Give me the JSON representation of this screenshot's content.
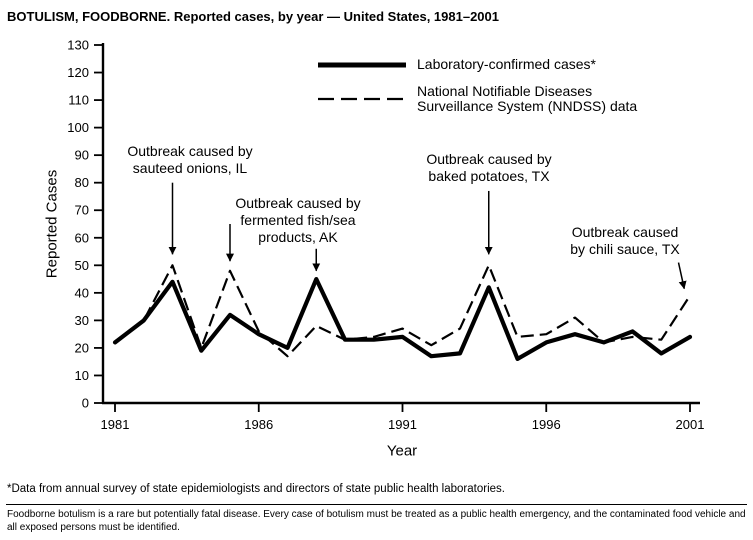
{
  "page": {
    "title": "BOTULISM, FOODBORNE. Reported cases, by year — United States, 1981–2001",
    "footnote": "*Data from annual survey of state epidemiologists and directors of state public health laboratories.",
    "bottom_note": "Foodborne botulism is a rare but potentially fatal disease. Every case of botulism must be treated as a public health emergency, and the contaminated food vehicle and all exposed persons must be identified."
  },
  "legend": {
    "lab_label": "Laboratory-confirmed cases*",
    "nndss_lines": [
      "National Notifiable Diseases",
      "Surveillance System (NNDSS) data"
    ]
  },
  "chart_data": {
    "type": "line",
    "title": "BOTULISM, FOODBORNE. Reported cases, by year — United States, 1981–2001",
    "xlabel": "Year",
    "ylabel": "Reported Cases",
    "ylim": [
      0,
      130
    ],
    "ytick_step": 10,
    "grid": false,
    "legend_position": "top-inside",
    "background": "#ffffff",
    "line_color": "#000000",
    "x": [
      1981,
      1982,
      1983,
      1984,
      1985,
      1986,
      1987,
      1988,
      1989,
      1990,
      1991,
      1992,
      1993,
      1994,
      1995,
      1996,
      1997,
      1998,
      1999,
      2000,
      2001
    ],
    "xticks": [
      1981,
      1986,
      1991,
      1996,
      2001
    ],
    "series": [
      {
        "name": "Laboratory-confirmed cases*",
        "style": "solid-thick",
        "color": "#000000",
        "values": [
          22,
          30,
          44,
          19,
          32,
          25,
          20,
          45,
          23,
          23,
          24,
          17,
          18,
          42,
          16,
          22,
          25,
          22,
          26,
          18,
          24
        ]
      },
      {
        "name": "National Notifiable Diseases Surveillance System (NNDSS) data",
        "style": "dashed",
        "color": "#000000",
        "values": [
          22,
          30,
          50,
          20,
          48,
          26,
          17,
          28,
          23,
          24,
          27,
          21,
          27,
          50,
          24,
          25,
          31,
          22,
          24,
          23,
          39
        ]
      }
    ],
    "annotations": [
      {
        "lines": [
          "Outbreak caused by",
          "sauteed onions, IL"
        ],
        "arrows": [
          {
            "from": [
              1983,
              80
            ],
            "to": [
              1983,
              54
            ]
          }
        ]
      },
      {
        "lines": [
          "Outbreak caused by",
          "fermented fish/sea",
          "products, AK"
        ],
        "arrows": [
          {
            "from": [
              1985,
              65
            ],
            "to": [
              1985,
              51.5
            ]
          },
          {
            "from": [
              1988,
              56
            ],
            "to": [
              1988,
              48
            ]
          }
        ]
      },
      {
        "lines": [
          "Outbreak caused by",
          "baked potatoes, TX"
        ],
        "arrows": [
          {
            "from": [
              1994,
              77
            ],
            "to": [
              1994,
              54
            ]
          }
        ]
      },
      {
        "lines": [
          "Outbreak caused",
          "by chili sauce, TX"
        ],
        "arrows": [
          {
            "from": [
              2000.6,
              51
            ],
            "to": [
              2000.8,
              41.5
            ]
          }
        ]
      }
    ]
  }
}
